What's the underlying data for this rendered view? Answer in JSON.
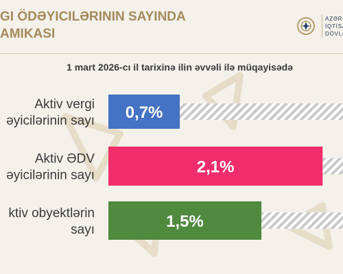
{
  "header": {
    "title_lines": [
      "GI ÖDƏYICILƏRININ SAYINDA",
      "AMIKASI"
    ],
    "org_lines": [
      "AZƏRBA",
      "İQTİSAD",
      "DÖVLƏT"
    ]
  },
  "chart_data": {
    "type": "bar",
    "orientation": "horizontal",
    "subtitle": "1 mart 2026-cı il tarixinə ilin əvvəli ilə müqayisədə",
    "categories": [
      [
        "Aktiv vergi",
        "əyicilərinin sayı"
      ],
      [
        "Aktiv ƏDV",
        "əyicilərinin sayı"
      ],
      [
        "ktiv obyektlərin",
        "sayı"
      ]
    ],
    "values": [
      0.7,
      2.1,
      1.5
    ],
    "value_labels": [
      "0,7%",
      "2,1%",
      "1,5%"
    ],
    "colors": [
      "#4472c4",
      "#ef2d6a",
      "#4f8a3e"
    ],
    "background_fill": "hatched-gray",
    "xlim": [
      0,
      2.3
    ]
  }
}
